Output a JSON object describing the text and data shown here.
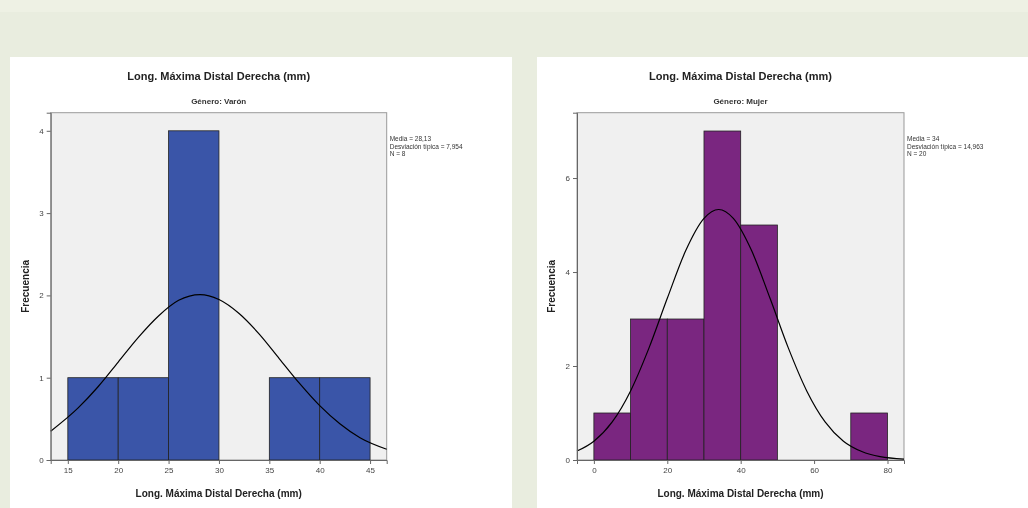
{
  "chart_data": [
    {
      "type": "histogram",
      "title": "Long. Máxima Distal Derecha (mm)",
      "subtitle": "Género: Varón",
      "xlabel": "Long. Máxima Distal Derecha (mm)",
      "ylabel": "Frecuencia",
      "bins": [
        15,
        20,
        25,
        30,
        35,
        40,
        45
      ],
      "xlim": [
        13.3,
        46.65
      ],
      "xticks": [
        15,
        20,
        25,
        30,
        35,
        40,
        45
      ],
      "ylim": [
        0,
        4.22
      ],
      "yticks": [
        0,
        1,
        2,
        3,
        4
      ],
      "series": [
        {
          "color": "#3a55a8",
          "values": [
            1,
            1,
            4,
            0,
            1,
            1
          ]
        },
        {
          "type": "line",
          "color": "#000000",
          "x": [
            13.3,
            16,
            18,
            20,
            22,
            24,
            26,
            28.13,
            30,
            32,
            34,
            36,
            38,
            40,
            42,
            44,
            46.65
          ],
          "values": [
            0.35,
            0.63,
            0.89,
            1.19,
            1.49,
            1.75,
            1.94,
            2.01,
            1.95,
            1.78,
            1.53,
            1.23,
            0.93,
            0.66,
            0.44,
            0.27,
            0.13
          ]
        }
      ],
      "annotations": [
        "Media = 28,13",
        "Desviación típica = 7,954",
        "N = 8"
      ]
    },
    {
      "type": "histogram",
      "title": "Long. Máxima Distal Derecha (mm)",
      "subtitle": "Género: Mujer",
      "xlabel": "Long. Máxima Distal Derecha (mm)",
      "ylabel": "Frecuencia",
      "bins": [
        0,
        10,
        20,
        30,
        40,
        50,
        60,
        70,
        80
      ],
      "xlim": [
        -4.6,
        84.5
      ],
      "xticks": [
        0,
        20,
        40,
        60,
        80
      ],
      "ylim": [
        0,
        7.39
      ],
      "yticks": [
        0,
        2,
        4,
        6
      ],
      "series": [
        {
          "color": "#7a2680",
          "values": [
            1,
            3,
            3,
            7,
            5,
            0,
            0,
            1
          ]
        },
        {
          "type": "line",
          "color": "#000000",
          "x": [
            -4.6,
            0,
            5,
            10,
            15,
            20,
            25,
            30,
            34,
            38,
            43,
            48,
            53,
            58,
            63,
            68,
            73,
            78,
            84.5
          ],
          "values": [
            0.19,
            0.4,
            0.81,
            1.47,
            2.38,
            3.44,
            4.45,
            5.14,
            5.33,
            5.14,
            4.45,
            3.44,
            2.38,
            1.47,
            0.81,
            0.4,
            0.18,
            0.07,
            0.02
          ]
        }
      ],
      "annotations": [
        "Media = 34",
        "Desviación típica = 14,963",
        "N = 20"
      ]
    }
  ]
}
